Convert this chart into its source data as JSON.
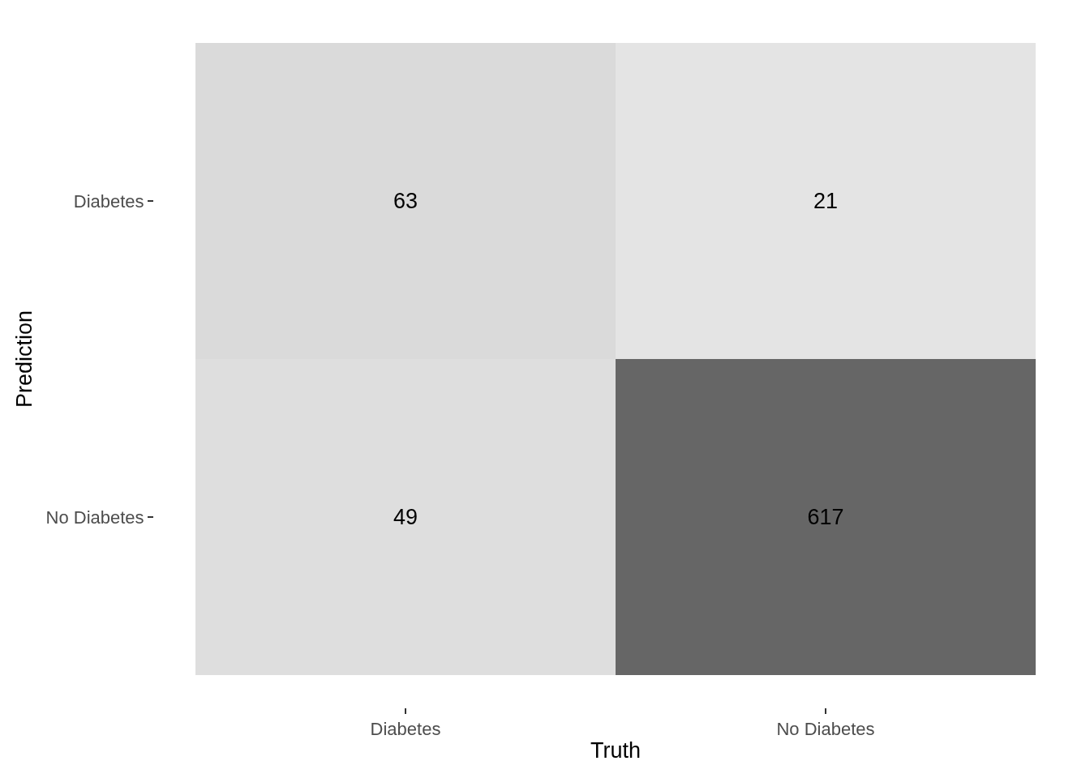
{
  "chart_data": {
    "type": "heatmap",
    "xlabel": "Truth",
    "ylabel": "Prediction",
    "categories": [
      "Diabetes",
      "No Diabetes"
    ],
    "y_categories": [
      "Diabetes",
      "No Diabetes"
    ],
    "cells": [
      [
        63,
        21
      ],
      [
        49,
        617
      ]
    ],
    "colors": [
      [
        "#dadada",
        "#e4e4e4"
      ],
      [
        "#dedede",
        "#666666"
      ]
    ],
    "data_labels": true
  }
}
